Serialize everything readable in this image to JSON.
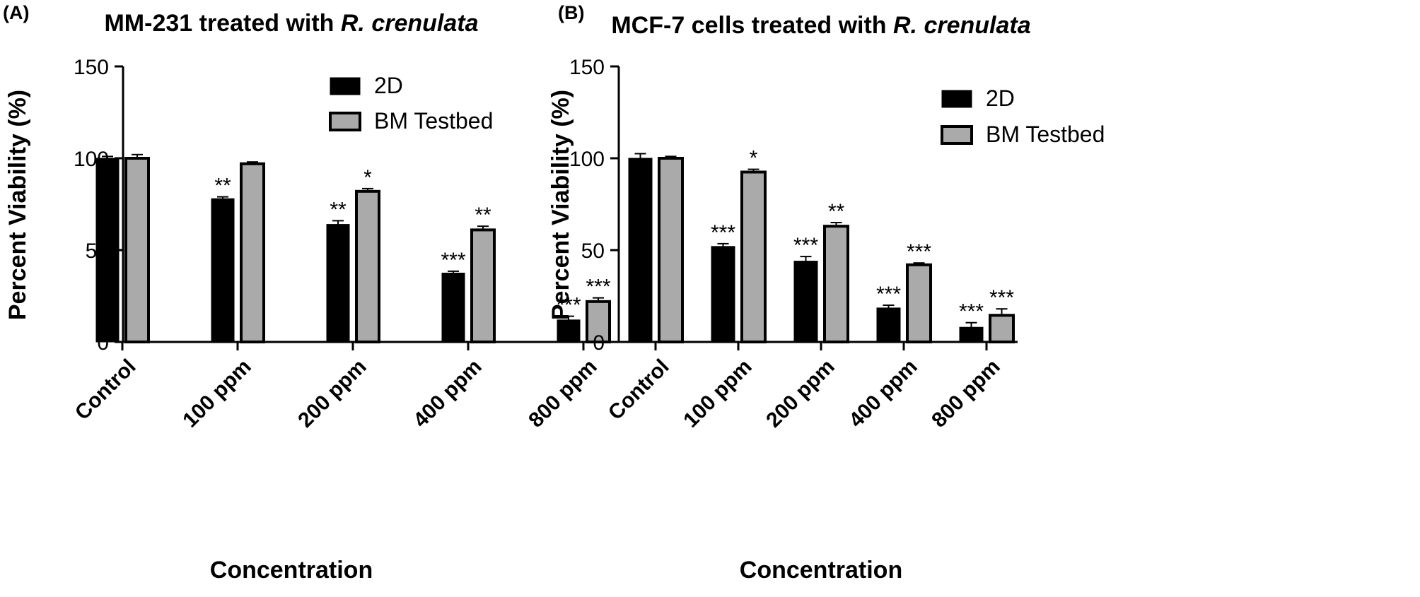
{
  "colors": {
    "series_2d": "#000000",
    "series_bm": "#aaaaaa",
    "outline": "#000000"
  },
  "chart_data": [
    {
      "type": "bar",
      "panel_label": "(A)",
      "title_prefix": "MM-231 treated with ",
      "title_italic": "R. crenulata",
      "xlabel": "Concentration",
      "ylabel": "Percent Viability (%)",
      "ylim": [
        0,
        150
      ],
      "yticks": [
        "0",
        "50",
        "100",
        "150"
      ],
      "categories": [
        "Control",
        "100 ppm",
        "200 ppm",
        "400 ppm",
        "800 ppm"
      ],
      "legend_position": "top-right",
      "series": [
        {
          "name": "2D",
          "values": [
            100,
            78,
            64,
            37.5,
            12
          ],
          "errors": [
            1,
            1,
            2,
            1,
            2
          ],
          "stars": [
            "",
            "**",
            "**",
            "***",
            "***"
          ]
        },
        {
          "name": "BM Testbed",
          "values": [
            100,
            97,
            82,
            61,
            22
          ],
          "errors": [
            2,
            1,
            1.5,
            2,
            2
          ],
          "stars": [
            "",
            "",
            "*",
            "**",
            "***"
          ]
        }
      ]
    },
    {
      "type": "bar",
      "panel_label": "(B)",
      "title_prefix": "MCF-7 cells treated with ",
      "title_italic": "R. crenulata",
      "xlabel": "Concentration",
      "ylabel": "Percent Viability (%)",
      "ylim": [
        0,
        150
      ],
      "yticks": [
        "0",
        "50",
        "100",
        "150"
      ],
      "categories": [
        "Control",
        "100 ppm",
        "200 ppm",
        "400 ppm",
        "800 ppm"
      ],
      "legend_position": "top-right",
      "series": [
        {
          "name": "2D",
          "values": [
            100,
            52,
            44,
            18.5,
            8
          ],
          "errors": [
            2.5,
            1.5,
            2.5,
            1.5,
            2.5
          ],
          "stars": [
            "",
            "***",
            "***",
            "***",
            "***"
          ]
        },
        {
          "name": "BM Testbed",
          "values": [
            100,
            92.5,
            63,
            42,
            14.5
          ],
          "errors": [
            1,
            1.5,
            2,
            1,
            3.5
          ],
          "stars": [
            "",
            "*",
            "**",
            "***",
            "***"
          ]
        }
      ]
    }
  ]
}
